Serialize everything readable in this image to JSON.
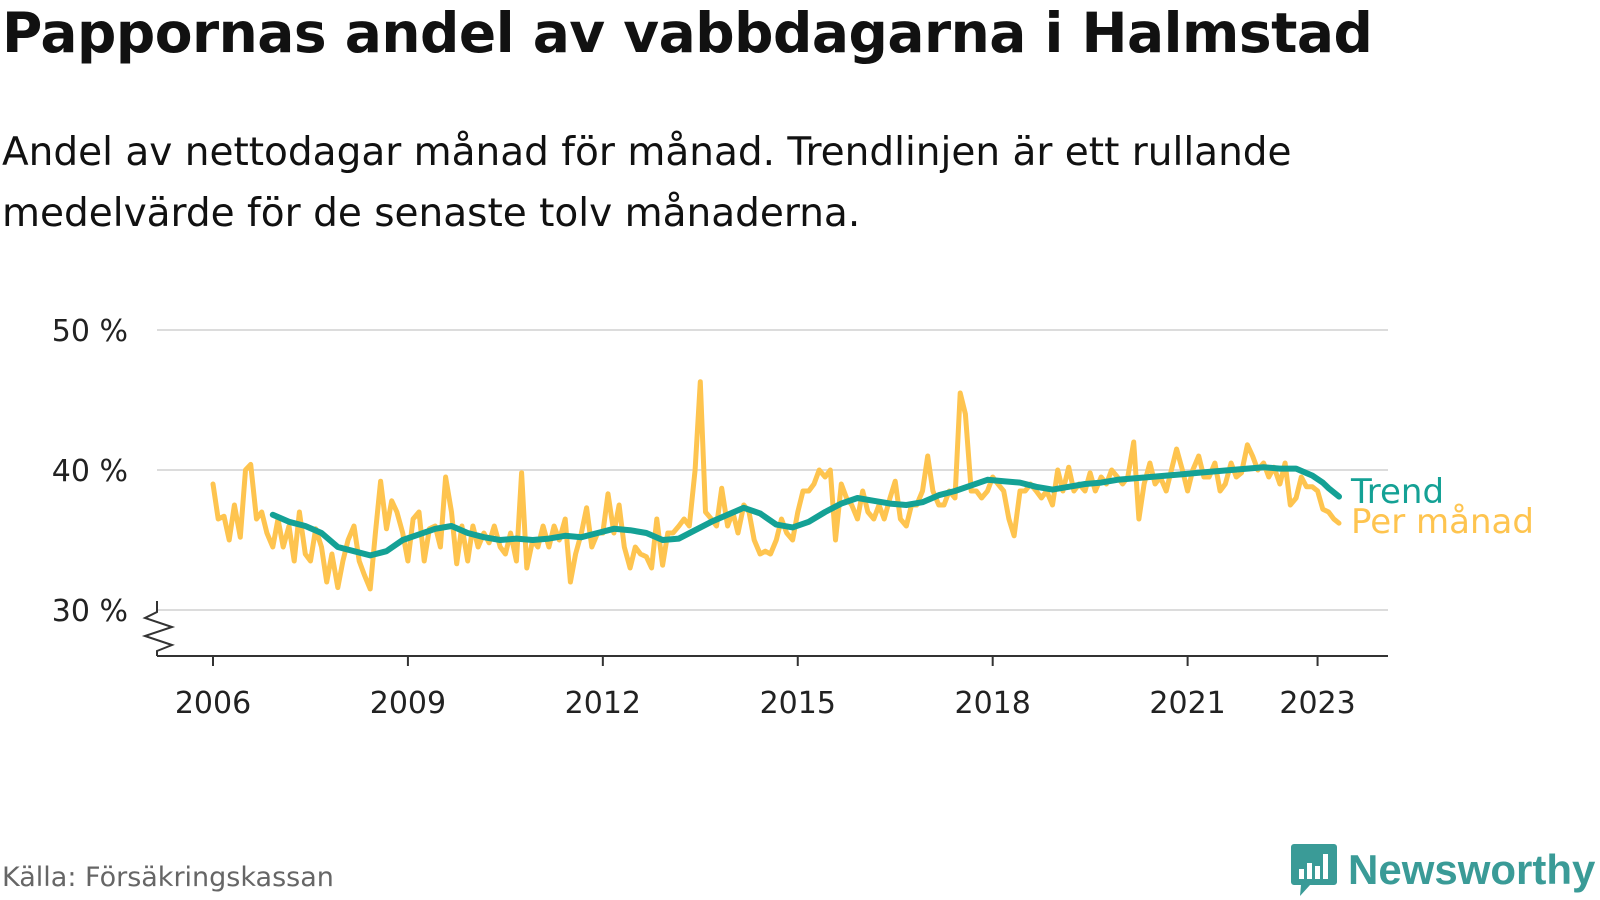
{
  "header": {
    "title": "Pappornas andel av vabbdagarna i Halmstad",
    "subtitle": "Andel av nettodagar månad för månad. Trendlinjen är ett rullande medelvärde för de senaste tolv månaderna."
  },
  "footer": {
    "source": "Källa: Försäkringskassan",
    "brand": "Newsworthy",
    "brand_icon": "newsworthy-chart-logo-icon"
  },
  "chart_data": {
    "type": "line",
    "x_unit": "year (decimal)",
    "y_unit": "percent",
    "ylim": [
      30,
      50
    ],
    "xlim": [
      2006,
      2023.33
    ],
    "y_ticks": [
      30,
      40,
      50
    ],
    "y_tick_labels": [
      "30 %",
      "40 %",
      "50 %"
    ],
    "x_ticks": [
      2006,
      2009,
      2012,
      2015,
      2018,
      2021,
      2023
    ],
    "x_tick_labels": [
      "2006",
      "2009",
      "2012",
      "2015",
      "2018",
      "2021",
      "2023"
    ],
    "grid": "horizontal",
    "axis_break": "y-axis below 30 %",
    "series": [
      {
        "name": "Per månad",
        "color": "#fec44f",
        "points": [
          [
            2006.0,
            39.0
          ],
          [
            2006.08,
            36.5
          ],
          [
            2006.17,
            36.7
          ],
          [
            2006.25,
            35.0
          ],
          [
            2006.33,
            37.5
          ],
          [
            2006.42,
            35.2
          ],
          [
            2006.5,
            40.0
          ],
          [
            2006.58,
            40.4
          ],
          [
            2006.67,
            36.5
          ],
          [
            2006.75,
            37.0
          ],
          [
            2006.83,
            35.5
          ],
          [
            2006.92,
            34.5
          ],
          [
            2007.0,
            36.5
          ],
          [
            2007.08,
            34.5
          ],
          [
            2007.17,
            36.0
          ],
          [
            2007.25,
            33.5
          ],
          [
            2007.33,
            37.0
          ],
          [
            2007.42,
            34.0
          ],
          [
            2007.5,
            33.5
          ],
          [
            2007.58,
            35.8
          ],
          [
            2007.67,
            34.5
          ],
          [
            2007.75,
            32.0
          ],
          [
            2007.83,
            34.0
          ],
          [
            2007.92,
            31.6
          ],
          [
            2008.0,
            33.5
          ],
          [
            2008.08,
            35.0
          ],
          [
            2008.17,
            36.0
          ],
          [
            2008.25,
            33.5
          ],
          [
            2008.33,
            32.5
          ],
          [
            2008.42,
            31.5
          ],
          [
            2008.5,
            35.5
          ],
          [
            2008.58,
            39.2
          ],
          [
            2008.67,
            35.8
          ],
          [
            2008.75,
            37.8
          ],
          [
            2008.83,
            37.0
          ],
          [
            2008.92,
            35.5
          ],
          [
            2009.0,
            33.5
          ],
          [
            2009.08,
            36.5
          ],
          [
            2009.17,
            37.0
          ],
          [
            2009.25,
            33.5
          ],
          [
            2009.33,
            35.8
          ],
          [
            2009.42,
            36.0
          ],
          [
            2009.5,
            34.5
          ],
          [
            2009.58,
            39.5
          ],
          [
            2009.67,
            37.0
          ],
          [
            2009.75,
            33.3
          ],
          [
            2009.83,
            36.0
          ],
          [
            2009.92,
            33.5
          ],
          [
            2010.0,
            36.0
          ],
          [
            2010.08,
            34.5
          ],
          [
            2010.17,
            35.5
          ],
          [
            2010.25,
            34.8
          ],
          [
            2010.33,
            36.0
          ],
          [
            2010.42,
            34.5
          ],
          [
            2010.5,
            34.0
          ],
          [
            2010.58,
            35.5
          ],
          [
            2010.67,
            33.5
          ],
          [
            2010.75,
            39.8
          ],
          [
            2010.83,
            33.0
          ],
          [
            2010.92,
            35.0
          ],
          [
            2011.0,
            34.5
          ],
          [
            2011.08,
            36.0
          ],
          [
            2011.17,
            34.5
          ],
          [
            2011.25,
            36.0
          ],
          [
            2011.33,
            35.0
          ],
          [
            2011.42,
            36.5
          ],
          [
            2011.5,
            32.0
          ],
          [
            2011.58,
            34.0
          ],
          [
            2011.67,
            35.5
          ],
          [
            2011.75,
            37.3
          ],
          [
            2011.83,
            34.5
          ],
          [
            2011.92,
            35.5
          ],
          [
            2012.0,
            35.5
          ],
          [
            2012.08,
            38.3
          ],
          [
            2012.17,
            35.5
          ],
          [
            2012.25,
            37.5
          ],
          [
            2012.33,
            34.5
          ],
          [
            2012.42,
            33.0
          ],
          [
            2012.5,
            34.5
          ],
          [
            2012.58,
            34.0
          ],
          [
            2012.67,
            33.8
          ],
          [
            2012.75,
            33.0
          ],
          [
            2012.83,
            36.5
          ],
          [
            2012.92,
            33.2
          ],
          [
            2013.0,
            35.5
          ],
          [
            2013.08,
            35.5
          ],
          [
            2013.17,
            36.0
          ],
          [
            2013.25,
            36.5
          ],
          [
            2013.33,
            36.0
          ],
          [
            2013.42,
            40.0
          ],
          [
            2013.5,
            46.3
          ],
          [
            2013.58,
            37.0
          ],
          [
            2013.67,
            36.5
          ],
          [
            2013.75,
            36.0
          ],
          [
            2013.83,
            38.7
          ],
          [
            2013.92,
            36.0
          ],
          [
            2014.0,
            37.0
          ],
          [
            2014.08,
            35.5
          ],
          [
            2014.17,
            37.5
          ],
          [
            2014.25,
            37.0
          ],
          [
            2014.33,
            35.0
          ],
          [
            2014.42,
            34.0
          ],
          [
            2014.5,
            34.2
          ],
          [
            2014.58,
            34.0
          ],
          [
            2014.67,
            35.0
          ],
          [
            2014.75,
            36.5
          ],
          [
            2014.83,
            35.5
          ],
          [
            2014.92,
            35.0
          ],
          [
            2015.0,
            37.0
          ],
          [
            2015.08,
            38.5
          ],
          [
            2015.17,
            38.5
          ],
          [
            2015.25,
            39.0
          ],
          [
            2015.33,
            40.0
          ],
          [
            2015.42,
            39.5
          ],
          [
            2015.5,
            40.0
          ],
          [
            2015.58,
            35.0
          ],
          [
            2015.67,
            39.0
          ],
          [
            2015.75,
            38.0
          ],
          [
            2015.83,
            37.5
          ],
          [
            2015.92,
            36.5
          ],
          [
            2016.0,
            38.5
          ],
          [
            2016.08,
            37.0
          ],
          [
            2016.17,
            36.5
          ],
          [
            2016.25,
            37.5
          ],
          [
            2016.33,
            36.5
          ],
          [
            2016.42,
            38.0
          ],
          [
            2016.5,
            39.2
          ],
          [
            2016.58,
            36.5
          ],
          [
            2016.67,
            36.0
          ],
          [
            2016.75,
            37.5
          ],
          [
            2016.83,
            37.5
          ],
          [
            2016.92,
            38.5
          ],
          [
            2017.0,
            41.0
          ],
          [
            2017.08,
            38.5
          ],
          [
            2017.17,
            37.5
          ],
          [
            2017.25,
            37.5
          ],
          [
            2017.33,
            38.5
          ],
          [
            2017.42,
            38.0
          ],
          [
            2017.5,
            45.5
          ],
          [
            2017.58,
            44.0
          ],
          [
            2017.67,
            38.5
          ],
          [
            2017.75,
            38.5
          ],
          [
            2017.83,
            38.0
          ],
          [
            2017.92,
            38.5
          ],
          [
            2018.0,
            39.5
          ],
          [
            2018.08,
            39.0
          ],
          [
            2018.17,
            38.5
          ],
          [
            2018.25,
            36.5
          ],
          [
            2018.33,
            35.3
          ],
          [
            2018.42,
            38.5
          ],
          [
            2018.5,
            38.5
          ],
          [
            2018.58,
            39.0
          ],
          [
            2018.67,
            38.5
          ],
          [
            2018.75,
            38.0
          ],
          [
            2018.83,
            38.5
          ],
          [
            2018.92,
            37.5
          ],
          [
            2019.0,
            40.0
          ],
          [
            2019.08,
            38.5
          ],
          [
            2019.17,
            40.2
          ],
          [
            2019.25,
            38.5
          ],
          [
            2019.33,
            39.0
          ],
          [
            2019.42,
            38.5
          ],
          [
            2019.5,
            39.8
          ],
          [
            2019.58,
            38.5
          ],
          [
            2019.67,
            39.5
          ],
          [
            2019.75,
            39.0
          ],
          [
            2019.83,
            40.0
          ],
          [
            2019.92,
            39.5
          ],
          [
            2020.0,
            39.0
          ],
          [
            2020.08,
            39.5
          ],
          [
            2020.17,
            42.0
          ],
          [
            2020.25,
            36.5
          ],
          [
            2020.33,
            39.0
          ],
          [
            2020.42,
            40.5
          ],
          [
            2020.5,
            39.0
          ],
          [
            2020.58,
            39.5
          ],
          [
            2020.67,
            38.5
          ],
          [
            2020.75,
            40.0
          ],
          [
            2020.83,
            41.5
          ],
          [
            2020.92,
            40.0
          ],
          [
            2021.0,
            38.5
          ],
          [
            2021.08,
            40.0
          ],
          [
            2021.17,
            41.0
          ],
          [
            2021.25,
            39.5
          ],
          [
            2021.33,
            39.5
          ],
          [
            2021.42,
            40.5
          ],
          [
            2021.5,
            38.5
          ],
          [
            2021.58,
            39.0
          ],
          [
            2021.67,
            40.5
          ],
          [
            2021.75,
            39.5
          ],
          [
            2021.83,
            39.8
          ],
          [
            2021.92,
            41.8
          ],
          [
            2022.0,
            41.0
          ],
          [
            2022.08,
            40.0
          ],
          [
            2022.17,
            40.5
          ],
          [
            2022.25,
            39.5
          ],
          [
            2022.33,
            40.2
          ],
          [
            2022.42,
            39.0
          ],
          [
            2022.5,
            40.5
          ],
          [
            2022.58,
            37.5
          ],
          [
            2022.67,
            38.0
          ],
          [
            2022.75,
            39.5
          ],
          [
            2022.83,
            38.8
          ],
          [
            2022.92,
            38.8
          ],
          [
            2023.0,
            38.5
          ],
          [
            2023.08,
            37.2
          ],
          [
            2023.17,
            37.0
          ],
          [
            2023.25,
            36.5
          ],
          [
            2023.33,
            36.2
          ]
        ]
      },
      {
        "name": "Trend",
        "color": "#14a195",
        "points": [
          [
            2006.92,
            36.8
          ],
          [
            2007.17,
            36.3
          ],
          [
            2007.42,
            36.0
          ],
          [
            2007.67,
            35.5
          ],
          [
            2007.92,
            34.5
          ],
          [
            2008.17,
            34.2
          ],
          [
            2008.42,
            33.9
          ],
          [
            2008.67,
            34.2
          ],
          [
            2008.92,
            35.0
          ],
          [
            2009.17,
            35.4
          ],
          [
            2009.42,
            35.8
          ],
          [
            2009.67,
            36.0
          ],
          [
            2009.92,
            35.5
          ],
          [
            2010.17,
            35.2
          ],
          [
            2010.42,
            35.0
          ],
          [
            2010.67,
            35.1
          ],
          [
            2010.92,
            35.0
          ],
          [
            2011.17,
            35.1
          ],
          [
            2011.42,
            35.3
          ],
          [
            2011.67,
            35.2
          ],
          [
            2011.92,
            35.5
          ],
          [
            2012.17,
            35.8
          ],
          [
            2012.42,
            35.7
          ],
          [
            2012.67,
            35.5
          ],
          [
            2012.92,
            35.0
          ],
          [
            2013.17,
            35.1
          ],
          [
            2013.42,
            35.7
          ],
          [
            2013.67,
            36.3
          ],
          [
            2013.92,
            36.8
          ],
          [
            2014.17,
            37.3
          ],
          [
            2014.42,
            36.9
          ],
          [
            2014.67,
            36.1
          ],
          [
            2014.92,
            35.9
          ],
          [
            2015.17,
            36.3
          ],
          [
            2015.42,
            37.0
          ],
          [
            2015.67,
            37.6
          ],
          [
            2015.92,
            38.0
          ],
          [
            2016.17,
            37.8
          ],
          [
            2016.42,
            37.6
          ],
          [
            2016.67,
            37.5
          ],
          [
            2016.92,
            37.7
          ],
          [
            2017.17,
            38.2
          ],
          [
            2017.42,
            38.5
          ],
          [
            2017.67,
            38.9
          ],
          [
            2017.92,
            39.3
          ],
          [
            2018.17,
            39.2
          ],
          [
            2018.42,
            39.1
          ],
          [
            2018.67,
            38.8
          ],
          [
            2018.92,
            38.6
          ],
          [
            2019.17,
            38.8
          ],
          [
            2019.42,
            39.0
          ],
          [
            2019.67,
            39.1
          ],
          [
            2019.92,
            39.3
          ],
          [
            2020.17,
            39.4
          ],
          [
            2020.42,
            39.5
          ],
          [
            2020.67,
            39.6
          ],
          [
            2020.92,
            39.7
          ],
          [
            2021.17,
            39.8
          ],
          [
            2021.42,
            39.9
          ],
          [
            2021.67,
            40.0
          ],
          [
            2021.92,
            40.1
          ],
          [
            2022.17,
            40.2
          ],
          [
            2022.42,
            40.1
          ],
          [
            2022.67,
            40.1
          ],
          [
            2022.92,
            39.6
          ],
          [
            2023.08,
            39.1
          ],
          [
            2023.17,
            38.7
          ],
          [
            2023.33,
            38.1
          ]
        ]
      }
    ]
  }
}
